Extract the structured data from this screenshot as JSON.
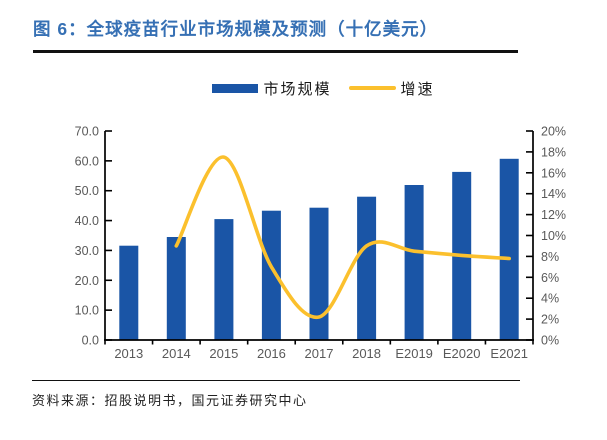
{
  "title": {
    "text": "图 6：全球疫苗行业市场规模及预测（十亿美元）"
  },
  "legend": {
    "market_size_label": "市场规模",
    "growth_label": "增速"
  },
  "footer": {
    "text": "资料来源：招股说明书，国元证券研究中心"
  },
  "colors": {
    "bar": "#1A55A6",
    "line": "#FBC02D",
    "title": "#3670B4",
    "axis_text": "#595959",
    "axis_line": "#000000",
    "rule": "#111111"
  },
  "chart_data": {
    "type": "bar",
    "title": "全球疫苗行业市场规模及预测（十亿美元）",
    "categories": [
      "2013",
      "2014",
      "2015",
      "2016",
      "2017",
      "2018",
      "E2019",
      "E2020",
      "E2021"
    ],
    "series": [
      {
        "name": "市场规模",
        "type": "bar",
        "axis": "left",
        "values": [
          31.6,
          34.5,
          40.5,
          43.3,
          44.3,
          48.0,
          51.9,
          56.3,
          60.7
        ]
      },
      {
        "name": "增速",
        "type": "line",
        "axis": "right",
        "unit": "%",
        "values": [
          null,
          9.0,
          17.5,
          7.0,
          2.2,
          9.0,
          8.5,
          8.1,
          7.8
        ]
      }
    ],
    "left_axis": {
      "min": 0,
      "max": 70,
      "step": 10,
      "labels": [
        "0.0",
        "10.0",
        "20.0",
        "30.0",
        "40.0",
        "50.0",
        "60.0",
        "70.0"
      ]
    },
    "right_axis": {
      "min": 0,
      "max": 20,
      "step": 2,
      "labels": [
        "0%",
        "2%",
        "4%",
        "6%",
        "8%",
        "10%",
        "12%",
        "14%",
        "16%",
        "18%",
        "20%"
      ]
    },
    "legend_position": "top",
    "grid": false
  }
}
